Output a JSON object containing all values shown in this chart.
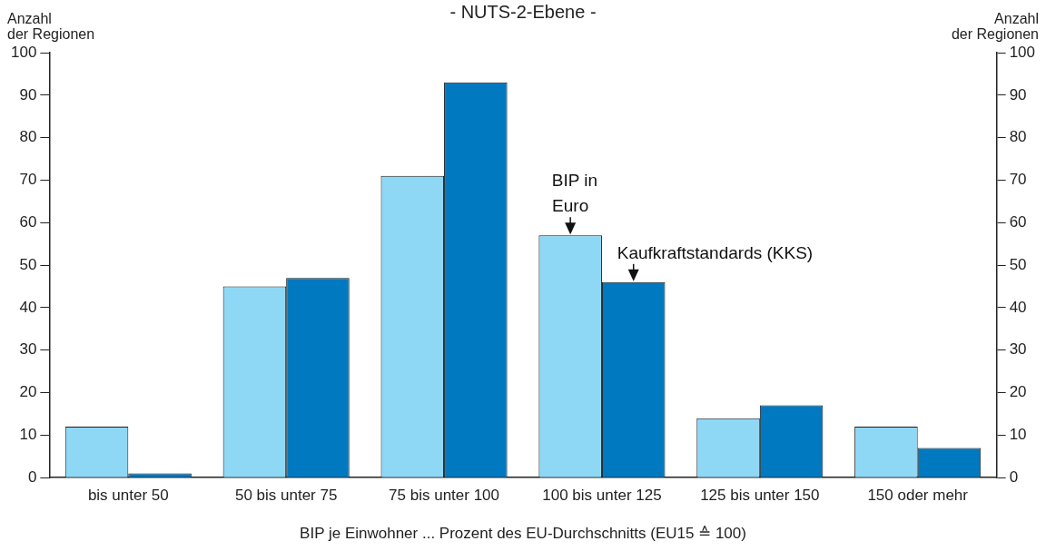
{
  "chart_data": {
    "type": "bar",
    "title": "- NUTS-2-Ebene -",
    "xlabel": "BIP je Einwohner ... Prozent des EU-Durchschnitts (EU15 ≙ 100)",
    "ylabel": "Anzahl\nder Regionen",
    "y2label": "Anzahl\nder Regionen",
    "legend_title": "BIP in",
    "categories": [
      "bis unter 50",
      "50 bis unter 75",
      "75 bis unter 100",
      "100 bis unter 125",
      "125 bis unter 150",
      "150 oder mehr"
    ],
    "series": [
      {
        "name": "Euro",
        "color": "#8fd8f5",
        "values": [
          12,
          45,
          71,
          57,
          14,
          12
        ]
      },
      {
        "name": "Kaufkraftstandards (KKS)",
        "color": "#0079c1",
        "values": [
          1,
          47,
          93,
          46,
          17,
          7
        ]
      }
    ],
    "ylim": [
      0,
      100
    ],
    "yticks": [
      0,
      10,
      20,
      30,
      40,
      50,
      60,
      70,
      80,
      90,
      100
    ],
    "y2lim": [
      0,
      100
    ],
    "y2ticks": [
      0,
      10,
      20,
      30,
      40,
      50,
      60,
      70,
      80,
      90,
      100
    ],
    "grid": false
  }
}
